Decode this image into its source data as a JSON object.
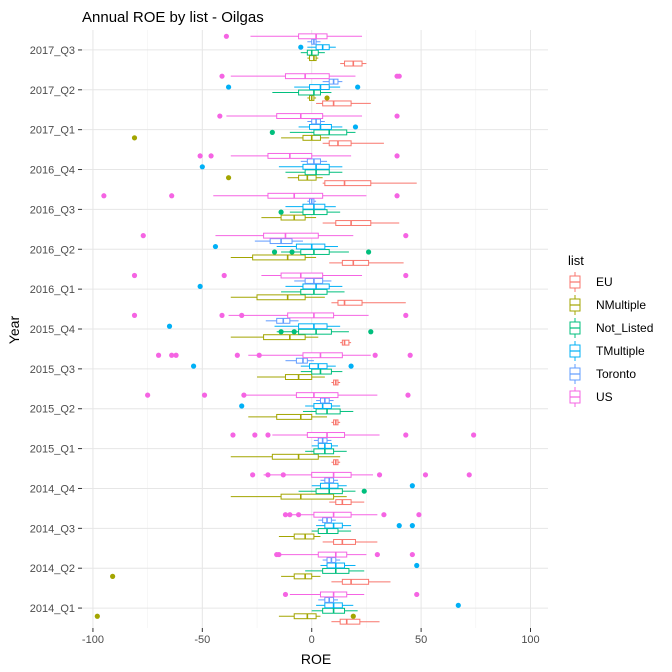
{
  "chart_data": {
    "type": "boxplot",
    "title": "Annual ROE by list - Oilgas",
    "xlabel": "ROE",
    "ylabel": "Year",
    "xlim": [
      -105,
      108
    ],
    "x_ticks": [
      -100,
      -50,
      0,
      50,
      100
    ],
    "categories": [
      "2014_Q1",
      "2014_Q2",
      "2014_Q3",
      "2014_Q4",
      "2015_Q1",
      "2015_Q2",
      "2015_Q3",
      "2015_Q4",
      "2016_Q1",
      "2016_Q2",
      "2016_Q3",
      "2016_Q4",
      "2017_Q1",
      "2017_Q2",
      "2017_Q3"
    ],
    "grid": true,
    "legend": {
      "title": "list",
      "position": "right"
    },
    "series": [
      {
        "name": "EU",
        "color": "#F8766D",
        "boxes": [
          {
            "min": 9,
            "q1": 13,
            "med": 16,
            "q3": 22,
            "max": 31,
            "outliers": []
          },
          {
            "min": 9,
            "q1": 14,
            "med": 18,
            "q3": 26,
            "max": 36,
            "outliers": []
          },
          {
            "min": 5,
            "q1": 10,
            "med": 14,
            "q3": 20,
            "max": 30,
            "outliers": []
          },
          {
            "min": 8,
            "q1": 11,
            "med": 14,
            "q3": 18,
            "max": 24,
            "outliers": []
          },
          {
            "min": 9,
            "q1": 10,
            "med": 11,
            "q3": 12,
            "max": 13,
            "outliers": []
          },
          {
            "min": 9,
            "q1": 10,
            "med": 11,
            "q3": 12,
            "max": 13,
            "outliers": []
          },
          {
            "min": 9,
            "q1": 10,
            "med": 11,
            "q3": 12,
            "max": 13,
            "outliers": []
          },
          {
            "min": 13,
            "q1": 14,
            "med": 15,
            "q3": 17,
            "max": 18,
            "outliers": []
          },
          {
            "min": 9,
            "q1": 12,
            "med": 15,
            "q3": 23,
            "max": 43,
            "outliers": []
          },
          {
            "min": 8,
            "q1": 14,
            "med": 19,
            "q3": 26,
            "max": 42,
            "outliers": []
          },
          {
            "min": 5,
            "q1": 11,
            "med": 18,
            "q3": 27,
            "max": 40,
            "outliers": []
          },
          {
            "min": 5,
            "q1": 6,
            "med": 15,
            "q3": 27,
            "max": 48,
            "outliers": []
          },
          {
            "min": 5,
            "q1": 8,
            "med": 12,
            "q3": 18,
            "max": 33,
            "outliers": []
          },
          {
            "min": 2,
            "q1": 5,
            "med": 10,
            "q3": 18,
            "max": 27,
            "outliers": []
          },
          {
            "min": 13,
            "q1": 15,
            "med": 19,
            "q3": 23,
            "max": 25,
            "outliers": []
          }
        ]
      },
      {
        "name": "NMultiple",
        "color": "#A3A500",
        "boxes": [
          {
            "min": -15,
            "q1": -8,
            "med": -2,
            "q3": 2,
            "max": 4,
            "outliers": [
              -98,
              19
            ]
          },
          {
            "min": -14,
            "q1": -8,
            "med": -3,
            "q3": 0,
            "max": 4,
            "outliers": [
              -91
            ]
          },
          {
            "min": -15,
            "q1": -8,
            "med": -3,
            "q3": 1,
            "max": 4,
            "outliers": []
          },
          {
            "min": -37,
            "q1": -14,
            "med": -5,
            "q3": 10,
            "max": 16,
            "outliers": []
          },
          {
            "min": -37,
            "q1": -18,
            "med": -6,
            "q3": 3,
            "max": 13,
            "outliers": []
          },
          {
            "min": -29,
            "q1": -16,
            "med": -5,
            "q3": 0,
            "max": 7,
            "outliers": []
          },
          {
            "min": -25,
            "q1": -12,
            "med": -6,
            "q3": 0,
            "max": 6,
            "outliers": []
          },
          {
            "min": -37,
            "q1": -22,
            "med": -10,
            "q3": -3,
            "max": 3,
            "outliers": []
          },
          {
            "min": -37,
            "q1": -25,
            "med": -11,
            "q3": -3,
            "max": 6,
            "outliers": []
          },
          {
            "min": -37,
            "q1": -27,
            "med": -11,
            "q3": -3,
            "max": 2,
            "outliers": []
          },
          {
            "min": -23,
            "q1": -14,
            "med": -8,
            "q3": -3,
            "max": 2,
            "outliers": []
          },
          {
            "min": -11,
            "q1": -6,
            "med": -2,
            "q3": 2,
            "max": 5,
            "outliers": [
              -38
            ]
          },
          {
            "min": -14,
            "q1": -4,
            "med": 0,
            "q3": 4,
            "max": 8,
            "outliers": [
              -81
            ]
          },
          {
            "min": -2,
            "q1": -1,
            "med": 0,
            "q3": 1,
            "max": 2,
            "outliers": [
              7
            ]
          },
          {
            "min": -2,
            "q1": -1,
            "med": 1,
            "q3": 2,
            "max": 3,
            "outliers": []
          }
        ]
      },
      {
        "name": "Not_Listed",
        "color": "#00BF7D",
        "boxes": [
          {
            "min": 0,
            "q1": 5,
            "med": 10,
            "q3": 15,
            "max": 21,
            "outliers": []
          },
          {
            "min": -3,
            "q1": 5,
            "med": 11,
            "q3": 17,
            "max": 24,
            "outliers": []
          },
          {
            "min": 0,
            "q1": 3,
            "med": 7,
            "q3": 12,
            "max": 18,
            "outliers": []
          },
          {
            "min": -6,
            "q1": 2,
            "med": 8,
            "q3": 14,
            "max": 20,
            "outliers": [
              24
            ]
          },
          {
            "min": -3,
            "q1": 1,
            "med": 6,
            "q3": 10,
            "max": 16,
            "outliers": []
          },
          {
            "min": -4,
            "q1": 2,
            "med": 7,
            "q3": 13,
            "max": 19,
            "outliers": []
          },
          {
            "min": -5,
            "q1": 0,
            "med": 4,
            "q3": 9,
            "max": 14,
            "outliers": []
          },
          {
            "min": -16,
            "q1": -6,
            "med": 2,
            "q3": 9,
            "max": 17,
            "outliers": [
              -14,
              -8,
              27
            ]
          },
          {
            "min": -14,
            "q1": -5,
            "med": 1,
            "q3": 7,
            "max": 15,
            "outliers": []
          },
          {
            "min": -14,
            "q1": -5,
            "med": 1,
            "q3": 8,
            "max": 17,
            "outliers": [
              -17,
              -9,
              26
            ]
          },
          {
            "min": -10,
            "q1": -4,
            "med": 1,
            "q3": 7,
            "max": 13,
            "outliers": [
              -14
            ]
          },
          {
            "min": -12,
            "q1": -3,
            "med": 2,
            "q3": 8,
            "max": 14,
            "outliers": []
          },
          {
            "min": -10,
            "q1": 1,
            "med": 8,
            "q3": 16,
            "max": 20,
            "outliers": [
              -18
            ]
          },
          {
            "min": -18,
            "q1": -6,
            "med": 1,
            "q3": 4,
            "max": 9,
            "outliers": []
          },
          {
            "min": -5,
            "q1": -2,
            "med": 0,
            "q3": 3,
            "max": 6,
            "outliers": []
          }
        ]
      },
      {
        "name": "TMultiple",
        "color": "#00B0F6",
        "boxes": [
          {
            "min": 2,
            "q1": 6,
            "med": 10,
            "q3": 14,
            "max": 19,
            "outliers": [
              67
            ]
          },
          {
            "min": 4,
            "q1": 7,
            "med": 11,
            "q3": 15,
            "max": 20,
            "outliers": [
              48
            ]
          },
          {
            "min": 2,
            "q1": 6,
            "med": 10,
            "q3": 14,
            "max": 18,
            "outliers": [
              40,
              46
            ]
          },
          {
            "min": 0,
            "q1": 4,
            "med": 8,
            "q3": 12,
            "max": 16,
            "outliers": [
              46
            ]
          },
          {
            "min": 0,
            "q1": 3,
            "med": 6,
            "q3": 9,
            "max": 12,
            "outliers": []
          },
          {
            "min": -3,
            "q1": 1,
            "med": 5,
            "q3": 9,
            "max": 13,
            "outliers": [
              -32
            ]
          },
          {
            "min": -5,
            "q1": -1,
            "med": 3,
            "q3": 7,
            "max": 11,
            "outliers": [
              -54,
              18
            ]
          },
          {
            "min": -17,
            "q1": -6,
            "med": 1,
            "q3": 7,
            "max": 13,
            "outliers": [
              -65
            ]
          },
          {
            "min": -12,
            "q1": -4,
            "med": 2,
            "q3": 8,
            "max": 14,
            "outliers": [
              -51
            ]
          },
          {
            "min": -16,
            "q1": -7,
            "med": 0,
            "q3": 6,
            "max": 12,
            "outliers": [
              -44
            ]
          },
          {
            "min": -12,
            "q1": -4,
            "med": 1,
            "q3": 6,
            "max": 11,
            "outliers": []
          },
          {
            "min": -15,
            "q1": -4,
            "med": 2,
            "q3": 8,
            "max": 14,
            "outliers": [
              -50
            ]
          },
          {
            "min": -6,
            "q1": -1,
            "med": 4,
            "q3": 9,
            "max": 14,
            "outliers": [
              20
            ]
          },
          {
            "min": -8,
            "q1": -1,
            "med": 4,
            "q3": 8,
            "max": 13,
            "outliers": [
              -38,
              21
            ]
          },
          {
            "min": -2,
            "q1": 2,
            "med": 5,
            "q3": 8,
            "max": 11,
            "outliers": [
              -5
            ]
          }
        ]
      },
      {
        "name": "Toronto",
        "color": "#619CFF",
        "boxes": [
          {
            "min": 3,
            "q1": 6,
            "med": 8,
            "q3": 10,
            "max": 12,
            "outliers": []
          },
          {
            "min": 5,
            "q1": 7,
            "med": 9,
            "q3": 11,
            "max": 13,
            "outliers": []
          },
          {
            "min": 3,
            "q1": 5,
            "med": 7,
            "q3": 9,
            "max": 11,
            "outliers": []
          },
          {
            "min": 4,
            "q1": 6,
            "med": 8,
            "q3": 10,
            "max": 12,
            "outliers": []
          },
          {
            "min": 1,
            "q1": 3,
            "med": 5,
            "q3": 7,
            "max": 9,
            "outliers": []
          },
          {
            "min": 2,
            "q1": 4,
            "med": 6,
            "q3": 8,
            "max": 10,
            "outliers": []
          },
          {
            "min": -12,
            "q1": -7,
            "med": -4,
            "q3": -2,
            "max": 1,
            "outliers": []
          },
          {
            "min": -21,
            "q1": -16,
            "med": -13,
            "q3": -10,
            "max": -6,
            "outliers": []
          },
          {
            "min": -8,
            "q1": -3,
            "med": 1,
            "q3": 5,
            "max": 9,
            "outliers": []
          },
          {
            "min": -26,
            "q1": -19,
            "med": -14,
            "q3": -9,
            "max": -4,
            "outliers": []
          },
          {
            "min": -2,
            "q1": -1,
            "med": 0,
            "q3": 1,
            "max": 2,
            "outliers": []
          },
          {
            "min": -5,
            "q1": -2,
            "med": 1,
            "q3": 4,
            "max": 7,
            "outliers": []
          },
          {
            "min": -2,
            "q1": 0,
            "med": 2,
            "q3": 4,
            "max": 6,
            "outliers": []
          },
          {
            "min": 5,
            "q1": 8,
            "med": 10,
            "q3": 12,
            "max": 14,
            "outliers": []
          },
          {
            "min": -2,
            "q1": 0,
            "med": 1,
            "q3": 2,
            "max": 4,
            "outliers": []
          }
        ]
      },
      {
        "name": "US",
        "color": "#F564E3",
        "boxes": [
          {
            "min": -10,
            "q1": 4,
            "med": 10,
            "q3": 16,
            "max": 24,
            "outliers": [
              -12,
              48
            ]
          },
          {
            "min": -14,
            "q1": 3,
            "med": 11,
            "q3": 16,
            "max": 25,
            "outliers": [
              -16,
              -15,
              30,
              46
            ]
          },
          {
            "min": -11,
            "q1": 1,
            "med": 10,
            "q3": 18,
            "max": 30,
            "outliers": [
              -12,
              -10,
              -6,
              33,
              49
            ]
          },
          {
            "min": -22,
            "q1": 0,
            "med": 10,
            "q3": 18,
            "max": 28,
            "outliers": [
              -27,
              -20,
              -13,
              31,
              52,
              72
            ]
          },
          {
            "min": -18,
            "q1": -2,
            "med": 7,
            "q3": 15,
            "max": 31,
            "outliers": [
              -36,
              -26,
              -20,
              43,
              74
            ]
          },
          {
            "min": -32,
            "q1": -7,
            "med": 1,
            "q3": 12,
            "max": 30,
            "outliers": [
              -75,
              -49,
              -31,
              44
            ]
          },
          {
            "min": -29,
            "q1": -4,
            "med": 4,
            "q3": 14,
            "max": 27,
            "outliers": [
              -70,
              -64,
              -62,
              -34,
              -24,
              29,
              45
            ]
          },
          {
            "min": -38,
            "q1": -11,
            "med": 1,
            "q3": 10,
            "max": 26,
            "outliers": [
              -81,
              -41,
              -32,
              43
            ]
          },
          {
            "min": -23,
            "q1": -14,
            "med": -5,
            "q3": 5,
            "max": 23,
            "outliers": [
              -81,
              -40,
              43
            ]
          },
          {
            "min": -44,
            "q1": -22,
            "med": -12,
            "q3": 3,
            "max": 19,
            "outliers": [
              -77,
              43
            ]
          },
          {
            "min": -45,
            "q1": -20,
            "med": -8,
            "q3": 5,
            "max": 25,
            "outliers": [
              -95,
              -64,
              39
            ]
          },
          {
            "min": -37,
            "q1": -20,
            "med": -10,
            "q3": 0,
            "max": 18,
            "outliers": [
              -51,
              -46,
              39
            ]
          },
          {
            "min": -39,
            "q1": -16,
            "med": -5,
            "q3": 5,
            "max": 23,
            "outliers": [
              -42,
              39
            ]
          },
          {
            "min": -37,
            "q1": -12,
            "med": -3,
            "q3": 8,
            "max": 20,
            "outliers": [
              -41,
              39,
              40
            ]
          },
          {
            "min": -28,
            "q1": -6,
            "med": 2,
            "q3": 7,
            "max": 23,
            "outliers": [
              -39
            ]
          }
        ]
      }
    ]
  }
}
